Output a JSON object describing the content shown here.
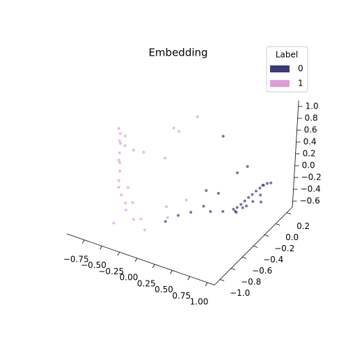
{
  "chart_data": {
    "type": "scatter3d",
    "title": "Embedding",
    "legend_title": "Label",
    "legend_position": "upper right",
    "xlim": [
      -1.0,
      1.1
    ],
    "ylim": [
      -1.1,
      0.3
    ],
    "zlim": [
      -0.7,
      1.1
    ],
    "xticks": [
      {
        "value": -0.75,
        "label": "−0.75"
      },
      {
        "value": -0.5,
        "label": "−0.50"
      },
      {
        "value": -0.25,
        "label": "−0.25"
      },
      {
        "value": 0,
        "label": "0.00"
      },
      0.25,
      {
        "value": 0.5,
        "label": "0.50"
      },
      0.75,
      {
        "value": 1,
        "label": "1.00"
      }
    ],
    "yticks": [
      {
        "value": -1.0,
        "label": "−1.0"
      },
      {
        "value": -0.8,
        "label": "−0.8"
      },
      {
        "value": -0.6,
        "label": "−0.6"
      },
      {
        "value": -0.4,
        "label": "−0.4"
      },
      {
        "value": -0.2,
        "label": "−0.2"
      },
      {
        "value": 0,
        "label": "0.0"
      },
      0.2
    ],
    "zticks": [
      {
        "value": -0.6,
        "label": "−0.6"
      },
      {
        "value": -0.4,
        "label": "−0.4"
      },
      {
        "value": -0.2,
        "label": "−0.2"
      },
      {
        "value": 0,
        "label": "0.0"
      },
      0.2,
      0.4,
      0.6,
      0.8,
      {
        "value": 1.0,
        "label": "1.0"
      }
    ],
    "series": [
      {
        "name": "0",
        "color": "#3b3a7a",
        "x": [
          0.5,
          0.55,
          0.6,
          0.65,
          0.7,
          0.75,
          0.8,
          0.85,
          0.9,
          0.95,
          1.0,
          0.6,
          0.7,
          0.8,
          0.9,
          0.5,
          0.4,
          0.3,
          0.2,
          0.1,
          0.65,
          0.75,
          0.85,
          0.45,
          0.35,
          0.55,
          0.95,
          0.25,
          0.0,
          0.15
        ],
        "y": [
          0.0,
          0.0,
          0.0,
          0.0,
          0.0,
          0.0,
          0.0,
          0.0,
          0.0,
          0.0,
          0.0,
          -0.1,
          -0.1,
          -0.05,
          -0.05,
          -0.2,
          -0.3,
          -0.3,
          -0.4,
          -0.5,
          -0.15,
          -0.1,
          0.05,
          0.1,
          -0.1,
          0.15,
          -0.1,
          -0.2,
          -0.6,
          0.2
        ],
        "z": [
          -0.7,
          -0.65,
          -0.58,
          -0.5,
          -0.42,
          -0.35,
          -0.27,
          -0.2,
          -0.13,
          -0.08,
          -0.05,
          -0.6,
          -0.5,
          -0.4,
          -0.25,
          -0.55,
          -0.5,
          -0.45,
          -0.5,
          -0.5,
          -0.55,
          -0.45,
          -0.2,
          -0.2,
          -0.4,
          -0.1,
          -0.3,
          -0.3,
          -0.55,
          0.2
        ]
      },
      {
        "name": "1",
        "color": "#dd9fd7",
        "x": [
          -0.8,
          -0.79,
          -0.78,
          -0.8,
          -0.77,
          -0.76,
          -0.78,
          -0.75,
          -0.72,
          -0.7,
          -0.74,
          -0.68,
          -0.6,
          -0.55,
          -0.5,
          -0.45,
          -0.4,
          -0.3,
          -0.2,
          -0.1,
          -0.65,
          -0.58,
          -0.35,
          0.0,
          0.1,
          -0.25,
          -0.5,
          -0.15,
          0.2,
          -0.4
        ],
        "y": [
          -0.5,
          -0.48,
          -0.5,
          -0.45,
          -0.5,
          -0.52,
          -0.47,
          -0.5,
          -0.55,
          -0.5,
          -0.45,
          -0.6,
          -0.65,
          -0.6,
          -0.7,
          -0.75,
          -0.7,
          -0.8,
          -0.8,
          -0.85,
          -0.4,
          -0.3,
          -0.2,
          -0.6,
          -0.7,
          -0.1,
          -0.9,
          0.1,
          -0.5,
          0.0
        ],
        "z": [
          0.6,
          0.5,
          0.4,
          0.3,
          0.2,
          0.1,
          0.0,
          -0.1,
          -0.2,
          0.35,
          0.45,
          -0.25,
          -0.3,
          -0.2,
          -0.35,
          -0.4,
          -0.3,
          -0.45,
          -0.4,
          -0.5,
          0.2,
          0.1,
          0.0,
          -0.3,
          -0.35,
          0.4,
          -0.5,
          0.5,
          -0.2,
          0.3
        ]
      }
    ]
  }
}
